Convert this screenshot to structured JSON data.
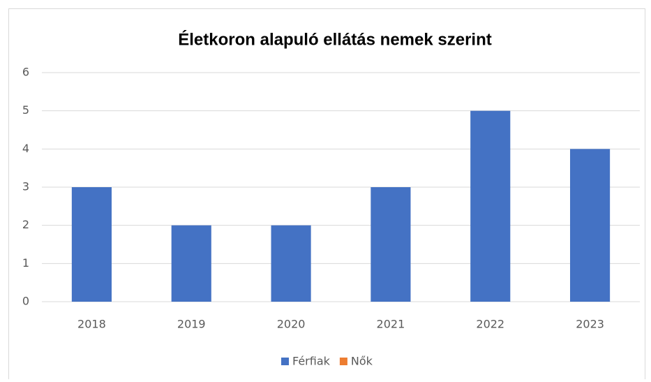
{
  "chart_data": {
    "type": "bar",
    "title": "Életkoron alapuló ellátás nemek szerint",
    "categories": [
      "2018",
      "2019",
      "2020",
      "2021",
      "2022",
      "2023"
    ],
    "series": [
      {
        "name": "Férfiak",
        "color": "#4472c4",
        "values": [
          3,
          2,
          2,
          3,
          5,
          4
        ]
      },
      {
        "name": "Nők",
        "color": "#ed7d31",
        "values": [
          null,
          null,
          null,
          null,
          null,
          null
        ]
      }
    ],
    "ylim": [
      0,
      6
    ],
    "yticks": [
      0,
      1,
      2,
      3,
      4,
      5,
      6
    ],
    "grid": true,
    "legend": "bottom"
  }
}
